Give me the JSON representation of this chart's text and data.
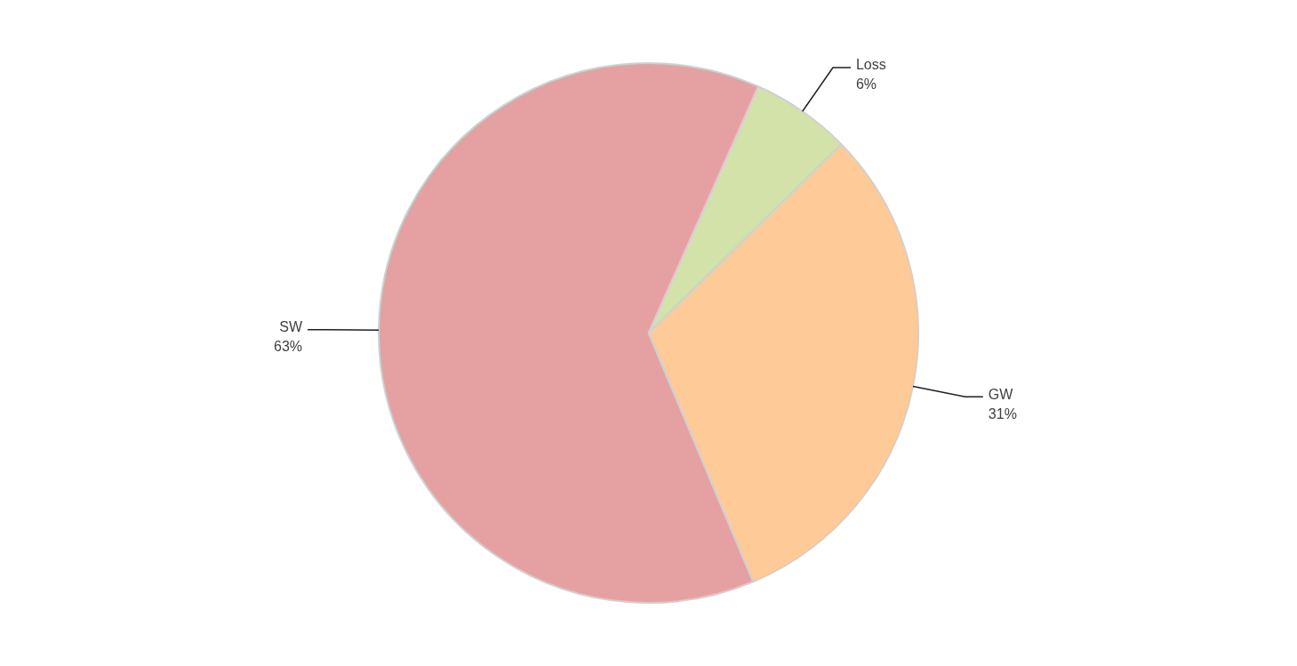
{
  "chart_data": {
    "type": "pie",
    "categories": [
      "Loss",
      "GW",
      "SW"
    ],
    "values": [
      6,
      31,
      63
    ],
    "value_labels": [
      "6%",
      "31%",
      "63%"
    ],
    "colors": [
      "#d3e2a8",
      "#fdca98",
      "#e5a1a1"
    ],
    "legend": false
  }
}
